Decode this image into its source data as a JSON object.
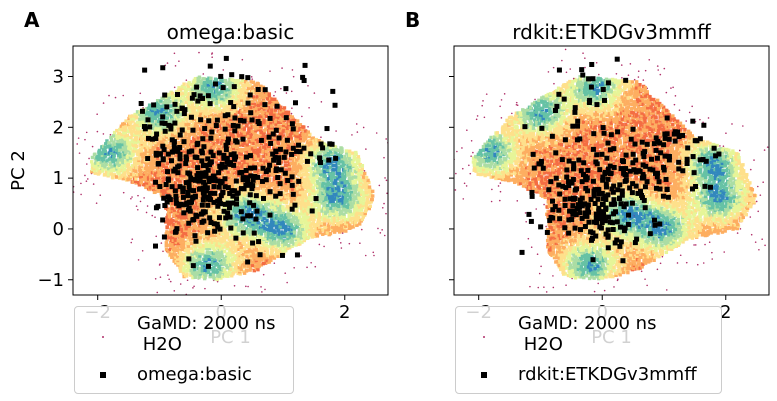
{
  "panels": [
    {
      "letter": "A",
      "title": "omega:basic",
      "legend": [
        {
          "label": "GaMD: 2000 ns\n H2O",
          "marker": "density-point"
        },
        {
          "label": "omega:basic",
          "marker": "square"
        }
      ]
    },
    {
      "letter": "B",
      "title": "rdkit:ETKDGv3mmff",
      "legend": [
        {
          "label": "GaMD: 2000 ns\n H2O",
          "marker": "density-point"
        },
        {
          "label": "rdkit:ETKDGv3mmff",
          "marker": "square"
        }
      ]
    }
  ],
  "chart_data": [
    {
      "type": "scatter",
      "title": "omega:basic",
      "xlabel": "PC 1",
      "ylabel": "PC 2",
      "xlim": [
        -2.4,
        2.7
      ],
      "ylim": [
        -1.3,
        3.6
      ],
      "xticks": [
        -2,
        0,
        2
      ],
      "yticks": [
        -1,
        0,
        1,
        2,
        3
      ],
      "grid": false,
      "legend_position": "lower-left outside",
      "background_density": {
        "name": "GaMD: 2000 ns\n H2O",
        "colormap": "Spectral",
        "hotspots": [
          {
            "x": -1.8,
            "y": 1.5
          },
          {
            "x": -1.0,
            "y": 2.3
          },
          {
            "x": -0.1,
            "y": 2.8
          },
          {
            "x": 1.9,
            "y": 0.6
          },
          {
            "x": 1.8,
            "y": 1.3
          },
          {
            "x": 1.0,
            "y": 0.0
          },
          {
            "x": -0.2,
            "y": -0.7
          },
          {
            "x": 0.4,
            "y": 0.3
          }
        ]
      },
      "series": [
        {
          "name": "omega:basic",
          "marker": "square",
          "color": "#000000",
          "clusters": [
            {
              "x": -0.15,
              "y": 0.6,
              "sx": 0.55,
              "sy": 0.5,
              "n": 220
            },
            {
              "x": -0.6,
              "y": 1.4,
              "sx": 0.6,
              "sy": 0.45,
              "n": 90
            },
            {
              "x": 0.9,
              "y": 1.4,
              "sx": 0.55,
              "sy": 0.45,
              "n": 80
            },
            {
              "x": -0.9,
              "y": 2.2,
              "sx": 0.5,
              "sy": 0.3,
              "n": 40
            },
            {
              "x": 0.2,
              "y": 2.7,
              "sx": 0.6,
              "sy": 0.4,
              "n": 40
            }
          ]
        }
      ]
    },
    {
      "type": "scatter",
      "title": "rdkit:ETKDGv3mmff",
      "xlabel": "PC 1",
      "ylabel": "",
      "xlim": [
        -2.4,
        2.7
      ],
      "ylim": [
        -1.3,
        3.6
      ],
      "xticks": [
        -2,
        0,
        2
      ],
      "yticks": [
        -1,
        0,
        1,
        2,
        3
      ],
      "grid": false,
      "legend_position": "lower-left outside",
      "background_density": {
        "name": "GaMD: 2000 ns\n H2O",
        "colormap": "Spectral",
        "hotspots": [
          {
            "x": -1.8,
            "y": 1.5
          },
          {
            "x": -1.0,
            "y": 2.3
          },
          {
            "x": -0.1,
            "y": 2.8
          },
          {
            "x": 1.9,
            "y": 0.6
          },
          {
            "x": 1.8,
            "y": 1.3
          },
          {
            "x": 1.0,
            "y": 0.0
          },
          {
            "x": -0.2,
            "y": -0.7
          },
          {
            "x": 0.4,
            "y": 0.3
          }
        ]
      },
      "series": [
        {
          "name": "rdkit:ETKDGv3mmff",
          "marker": "square",
          "color": "#000000",
          "clusters": [
            {
              "x": -0.1,
              "y": 0.5,
              "sx": 0.5,
              "sy": 0.45,
              "n": 200
            },
            {
              "x": 0.5,
              "y": 1.2,
              "sx": 0.6,
              "sy": 0.4,
              "n": 70
            },
            {
              "x": 1.2,
              "y": 1.6,
              "sx": 0.4,
              "sy": 0.35,
              "n": 45
            },
            {
              "x": -0.3,
              "y": 2.4,
              "sx": 0.35,
              "sy": 0.5,
              "n": 30
            },
            {
              "x": -1.3,
              "y": 1.8,
              "sx": 0.4,
              "sy": 0.2,
              "n": 15
            }
          ]
        }
      ]
    }
  ]
}
